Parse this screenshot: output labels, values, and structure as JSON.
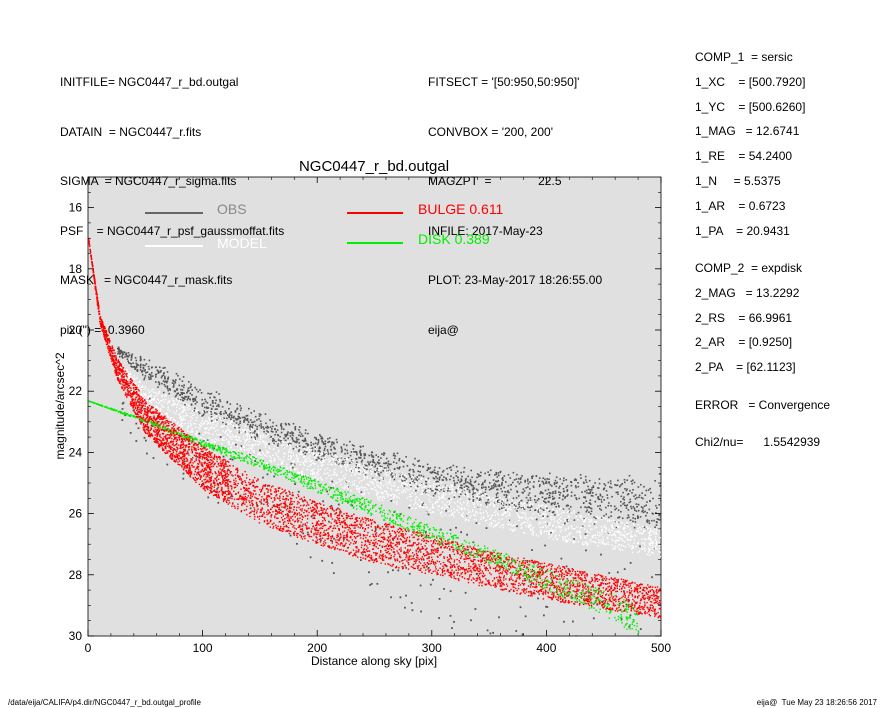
{
  "header_left": [
    "INITFILE= NGC0447_r_bd.outgal",
    "DATAIN  = NGC0447_r.fits",
    "SIGMA  = NGC0447_r_sigma.fits",
    "PSF    = NGC0447_r_psf_gaussmoffat.fits",
    "MASK   = NGC0447_r_mask.fits",
    "pix (\") =  0.3960"
  ],
  "header_mid": [
    "FITSECT = '[50:950,50:950]'",
    "CONVBOX = '200, 200'",
    "MAGZPT  =              22.5",
    "INFILE: 2017-May-23",
    "PLOT: 23-May-2017 18:26:55.00",
    "eija@"
  ],
  "components": [
    "COMP_1  = sersic",
    "1_XC    = [500.7920]",
    "1_YC    = [500.6260]",
    "1_MAG   = 12.6741",
    "1_RE    = 54.2400",
    "1_N     = 5.5375",
    "1_AR    = 0.6723",
    "1_PA    = 20.9431",
    "COMP_2  = expdisk",
    "2_MAG   = 13.2292",
    "2_RS    = 66.9961",
    "2_AR    = [0.9250]",
    "2_PA    = [62.1123]",
    "ERROR   = Convergence",
    "Chi2/nu=      1.5542939"
  ],
  "footer": {
    "left": "/data/eija/CALIFA/p4.dir/NGC0447_r_bd.outgal_profile",
    "right": "eija@  Tue May 23 18:26:56 2017"
  },
  "colors": {
    "plot_bg": "#e0e0e0",
    "obs": "#555555",
    "model": "#ffffff",
    "bulge": "#ff0000",
    "disk": "#00ee00"
  },
  "chart_data": {
    "type": "scatter",
    "title": "NGC0447_r_bd.outgal",
    "xlabel": "Distance along sky [pix]",
    "ylabel": "magnitude/arcsec^2",
    "xlim": [
      0,
      500
    ],
    "ylim": [
      30,
      15
    ],
    "y_inverted": true,
    "xticks": [
      "0",
      "100",
      "200",
      "300",
      "400",
      "500"
    ],
    "yticks": [
      "16",
      "18",
      "20",
      "22",
      "24",
      "26",
      "28",
      "30"
    ],
    "legend_placement": "top",
    "legend": [
      {
        "name": "OBS",
        "label": "OBS",
        "color": "#666666"
      },
      {
        "name": "MODEL",
        "label": "MODEL",
        "color": "#ffffff"
      },
      {
        "name": "BULGE",
        "label": "BULGE  0.611",
        "color": "#ff0000"
      },
      {
        "name": "DISK",
        "label": "DISK  0.389",
        "color": "#00ee00"
      }
    ],
    "series": [
      {
        "name": "OBS",
        "style": "scatter band",
        "x": [
          25,
          50,
          100,
          150,
          200,
          250,
          300,
          350,
          400,
          450,
          500
        ],
        "y_lower": [
          20.6,
          21.6,
          22.7,
          23.4,
          24.0,
          24.5,
          25.0,
          25.3,
          25.6,
          25.8,
          26.0
        ],
        "y_upper": [
          20.7,
          21.0,
          22.0,
          22.9,
          23.6,
          24.2,
          24.7,
          25.0,
          25.2,
          25.3,
          25.3
        ]
      },
      {
        "name": "MODEL",
        "style": "band",
        "x": [
          25,
          50,
          100,
          150,
          200,
          250,
          300,
          350,
          400,
          450,
          500
        ],
        "y_lower": [
          21.4,
          22.5,
          23.6,
          24.3,
          24.9,
          25.5,
          26.0,
          26.4,
          26.8,
          27.1,
          27.4
        ],
        "y_upper": [
          21.0,
          21.8,
          22.6,
          23.3,
          23.9,
          24.4,
          24.9,
          25.3,
          25.7,
          26.1,
          26.5
        ]
      },
      {
        "name": "BULGE",
        "style": "band",
        "x": [
          0,
          10,
          25,
          50,
          100,
          150,
          200,
          250,
          300,
          350,
          400,
          450,
          500
        ],
        "y_lower": [
          17.0,
          19.8,
          21.6,
          23.4,
          25.2,
          26.3,
          27.0,
          27.6,
          28.0,
          28.4,
          28.8,
          29.1,
          29.4
        ],
        "y_upper": [
          17.0,
          19.5,
          20.9,
          22.3,
          23.8,
          24.9,
          25.6,
          26.2,
          26.7,
          27.2,
          27.6,
          28.0,
          28.4
        ]
      },
      {
        "name": "DISK",
        "style": "band",
        "x": [
          0,
          50,
          100,
          150,
          200,
          250,
          300,
          350,
          400,
          450,
          480
        ],
        "y_lower": [
          22.3,
          23.0,
          23.8,
          24.5,
          25.3,
          26.1,
          26.9,
          27.6,
          28.5,
          29.3,
          30.0
        ],
        "y_upper": [
          22.3,
          22.9,
          23.6,
          24.2,
          24.9,
          25.6,
          26.4,
          27.1,
          27.8,
          28.5,
          29.0
        ]
      }
    ]
  }
}
